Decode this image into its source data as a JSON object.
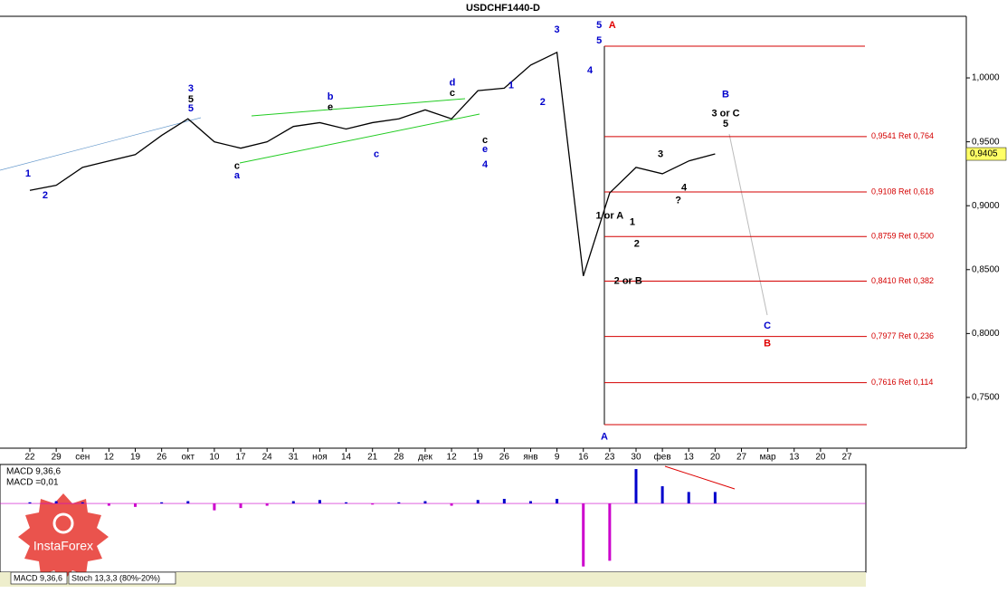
{
  "chart_data": [
    {
      "type": "line",
      "title": "USDCHF1440-D",
      "color": "#000000",
      "categories": [
        "22",
        "29",
        "сен",
        "12",
        "19",
        "26",
        "окт",
        "10",
        "17",
        "24",
        "31",
        "ноя",
        "14",
        "21",
        "28",
        "дек",
        "12",
        "19",
        "26",
        "янв",
        "9",
        "16",
        "23",
        "30",
        "фев",
        "13",
        "20",
        "27",
        "мар",
        "13",
        "20",
        "27"
      ],
      "values": [
        0.912,
        0.916,
        0.93,
        0.935,
        0.94,
        0.955,
        0.968,
        0.95,
        0.945,
        0.95,
        0.962,
        0.965,
        0.96,
        0.965,
        0.968,
        0.975,
        0.968,
        0.99,
        0.992,
        1.01,
        1.02,
        0.845,
        0.91,
        0.93,
        0.925,
        0.935,
        0.9405,
        null,
        null,
        null,
        null,
        null
      ],
      "ylim": [
        0.7103,
        1.0482
      ],
      "yticks": [
        {
          "value": 1.0,
          "label": "1,0000"
        },
        {
          "value": 0.95,
          "label": "0,9500"
        },
        {
          "value": 0.9,
          "label": "0,9000"
        },
        {
          "value": 0.85,
          "label": "0,8500"
        },
        {
          "value": 0.8,
          "label": "0,8000"
        },
        {
          "value": 0.75,
          "label": "0,7500"
        }
      ],
      "current_price": {
        "value": 0.9405,
        "label": "0,9405"
      },
      "levels": [
        {
          "value": 0.9541,
          "label": "0,9541 Ret 0,764"
        },
        {
          "value": 0.9108,
          "label": "0,9108 Ret 0,618"
        },
        {
          "value": 0.8759,
          "label": "0,8759 Ret 0,500"
        },
        {
          "value": 0.841,
          "label": "0,8410 Ret 0,382"
        },
        {
          "value": 0.7977,
          "label": "0,7977 Ret 0,236"
        },
        {
          "value": 0.7616,
          "label": "0,7616 Ret 0,114"
        }
      ],
      "level_color": "#d40000",
      "annotations": [
        {
          "text": "5",
          "x": 21.6,
          "y": 1.041,
          "color": "#0000cc"
        },
        {
          "text": "A",
          "x": 22.1,
          "y": 1.041,
          "color": "#e00000"
        },
        {
          "text": "3",
          "x": 20.0,
          "y": 1.0375,
          "color": "#0000cc"
        },
        {
          "text": "5",
          "x": 21.6,
          "y": 1.029,
          "color": "#0000cc"
        },
        {
          "text": "4",
          "x": 21.25,
          "y": 1.0057,
          "color": "#0000cc"
        },
        {
          "text": "1",
          "x": 18.26,
          "y": 0.994,
          "color": "#0000cc"
        },
        {
          "text": "2",
          "x": 19.46,
          "y": 0.981,
          "color": "#0000cc"
        },
        {
          "text": "3",
          "x": 6.11,
          "y": 0.9915,
          "color": "#0000cc"
        },
        {
          "text": "5",
          "x": 6.11,
          "y": 0.983,
          "color": "#000000"
        },
        {
          "text": "5",
          "x": 6.11,
          "y": 0.976,
          "color": "#0000cc"
        },
        {
          "text": "B",
          "x": 26.4,
          "y": 0.987,
          "color": "#0000cc"
        },
        {
          "text": "3 or C",
          "x": 26.4,
          "y": 0.972,
          "color": "#000000"
        },
        {
          "text": "5",
          "x": 26.4,
          "y": 0.964,
          "color": "#000000"
        },
        {
          "text": "3",
          "x": 23.93,
          "y": 0.94,
          "color": "#000000"
        },
        {
          "text": "4",
          "x": 24.82,
          "y": 0.914,
          "color": "#000000"
        },
        {
          "text": "?",
          "x": 24.6,
          "y": 0.904,
          "color": "#000000"
        },
        {
          "text": "1 or A",
          "x": 22.0,
          "y": 0.892,
          "color": "#000000"
        },
        {
          "text": "1",
          "x": 22.86,
          "y": 0.887,
          "color": "#000000"
        },
        {
          "text": "2",
          "x": 23.03,
          "y": 0.87,
          "color": "#000000"
        },
        {
          "text": "2 or B",
          "x": 22.7,
          "y": 0.841,
          "color": "#000000"
        },
        {
          "text": "C",
          "x": 27.98,
          "y": 0.806,
          "color": "#0000cc"
        },
        {
          "text": "B",
          "x": 27.98,
          "y": 0.792,
          "color": "#e00000"
        },
        {
          "text": "A",
          "x": 21.8,
          "y": 0.719,
          "color": "#0000cc"
        },
        {
          "text": "4",
          "x": 17.27,
          "y": 0.932,
          "color": "#0000cc"
        },
        {
          "text": "e",
          "x": 17.27,
          "y": 0.944,
          "color": "#0000cc"
        },
        {
          "text": "c",
          "x": 17.27,
          "y": 0.951,
          "color": "#000000"
        },
        {
          "text": "d",
          "x": 16.03,
          "y": 0.996,
          "color": "#0000cc"
        },
        {
          "text": "c",
          "x": 16.03,
          "y": 0.988,
          "color": "#000000"
        },
        {
          "text": "1",
          "x": -0.07,
          "y": 0.925,
          "color": "#0000cc"
        },
        {
          "text": "2",
          "x": 0.58,
          "y": 0.908,
          "color": "#0000cc"
        },
        {
          "text": "c",
          "x": 7.86,
          "y": 0.931,
          "color": "#000000"
        },
        {
          "text": "a",
          "x": 7.86,
          "y": 0.9235,
          "color": "#0000cc"
        },
        {
          "text": "c",
          "x": 13.15,
          "y": 0.94,
          "color": "#0000cc"
        },
        {
          "text": "e",
          "x": 11.4,
          "y": 0.977,
          "color": "#000000"
        },
        {
          "text": "b",
          "x": 11.4,
          "y": 0.985,
          "color": "#0000cc"
        }
      ],
      "watermark": "InstaForex",
      "tabs": [
        "MACD 9,36,6",
        "Stoch 13,3,3 (80%-20%)"
      ]
    },
    {
      "type": "bar",
      "title": "MACD 9,36,6",
      "subtitle": "MACD =0,01",
      "values": [
        0.001,
        0.002,
        0.001,
        -0.002,
        -0.003,
        0.001,
        0.002,
        -0.006,
        -0.004,
        -0.002,
        0.002,
        0.003,
        0.001,
        -0.001,
        0.001,
        0.002,
        -0.002,
        0.003,
        0.004,
        0.002,
        0.004,
        -0.055,
        -0.05,
        0.03,
        0.015,
        0.01,
        0.01,
        null,
        null,
        null,
        null,
        null
      ],
      "ylim": [
        -0.06,
        0.034
      ],
      "color": "#0000cc",
      "neg_color": "#cc00cc"
    }
  ]
}
